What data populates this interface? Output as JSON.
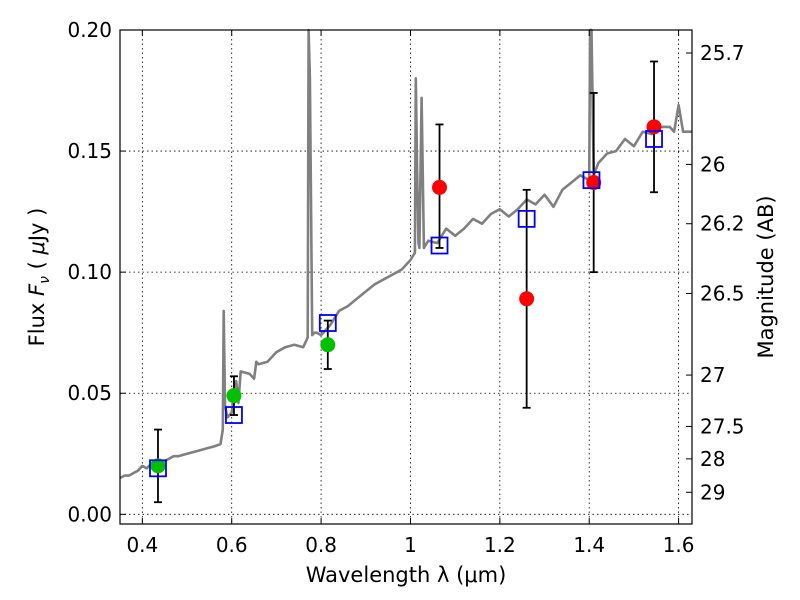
{
  "chart_data": {
    "type": "scatter",
    "xlabel": "Wavelength  λ (μm)",
    "ylabel": "Flux  F_ν  ( μJy )",
    "ylabel_right": "Magnitude (AB)",
    "xlim": [
      0.35,
      1.63
    ],
    "ylim": [
      -0.004,
      0.2
    ],
    "x_ticks": [
      0.4,
      0.6,
      0.8,
      1.0,
      1.2,
      1.4,
      1.6
    ],
    "x_tick_labels": [
      "0.4",
      "0.6",
      "0.8",
      "1",
      "1.2",
      "1.4",
      "1.6"
    ],
    "y_ticks": [
      0.0,
      0.05,
      0.1,
      0.15,
      0.2
    ],
    "y_tick_labels": [
      "0.00",
      "0.05",
      "0.10",
      "0.15",
      "0.20"
    ],
    "right_ticks": [
      {
        "flux": 0.1905,
        "label": "25.7"
      },
      {
        "flux": 0.1445,
        "label": "26"
      },
      {
        "flux": 0.12,
        "label": "26.2"
      },
      {
        "flux": 0.0912,
        "label": "26.5"
      },
      {
        "flux": 0.0575,
        "label": "27"
      },
      {
        "flux": 0.0363,
        "label": "27.5"
      },
      {
        "flux": 0.0229,
        "label": "28"
      },
      {
        "flux": 0.0091,
        "label": "29"
      }
    ],
    "grid": true,
    "colors": {
      "spectrum": "#808080",
      "green": "#00c000",
      "red": "#ff0000",
      "model_box": "#0000ff",
      "error_bar": "#000000"
    },
    "series": [
      {
        "name": "template spectrum",
        "style": "line",
        "x": [
          0.35,
          0.36,
          0.37,
          0.38,
          0.39,
          0.4,
          0.41,
          0.42,
          0.43,
          0.44,
          0.45,
          0.46,
          0.47,
          0.48,
          0.5,
          0.52,
          0.54,
          0.56,
          0.575,
          0.58,
          0.582,
          0.585,
          0.59,
          0.6,
          0.61,
          0.615,
          0.62,
          0.64,
          0.65,
          0.655,
          0.66,
          0.68,
          0.7,
          0.72,
          0.74,
          0.76,
          0.77,
          0.772,
          0.775,
          0.78,
          0.785,
          0.79,
          0.8,
          0.82,
          0.84,
          0.86,
          0.88,
          0.9,
          0.92,
          0.95,
          0.98,
          1.0,
          1.01,
          1.012,
          1.015,
          1.018,
          1.02,
          1.025,
          1.03,
          1.04,
          1.06,
          1.08,
          1.1,
          1.12,
          1.14,
          1.16,
          1.18,
          1.2,
          1.22,
          1.24,
          1.26,
          1.28,
          1.3,
          1.32,
          1.34,
          1.36,
          1.38,
          1.4,
          1.402,
          1.405,
          1.41,
          1.42,
          1.44,
          1.46,
          1.48,
          1.5,
          1.52,
          1.54,
          1.56,
          1.58,
          1.59,
          1.6,
          1.61,
          1.63
        ],
        "y": [
          0.015,
          0.016,
          0.016,
          0.017,
          0.018,
          0.02,
          0.019,
          0.021,
          0.022,
          0.021,
          0.022,
          0.023,
          0.024,
          0.024,
          0.025,
          0.026,
          0.027,
          0.028,
          0.029,
          0.035,
          0.084,
          0.045,
          0.04,
          0.042,
          0.055,
          0.046,
          0.059,
          0.058,
          0.056,
          0.063,
          0.062,
          0.063,
          0.067,
          0.069,
          0.07,
          0.069,
          0.073,
          0.21,
          0.18,
          0.074,
          0.075,
          0.075,
          0.074,
          0.078,
          0.084,
          0.086,
          0.089,
          0.092,
          0.095,
          0.098,
          0.101,
          0.105,
          0.108,
          0.18,
          0.14,
          0.112,
          0.11,
          0.172,
          0.11,
          0.113,
          0.112,
          0.118,
          0.115,
          0.118,
          0.122,
          0.12,
          0.124,
          0.126,
          0.123,
          0.126,
          0.13,
          0.128,
          0.132,
          0.127,
          0.134,
          0.137,
          0.14,
          0.138,
          0.21,
          0.2,
          0.14,
          0.145,
          0.149,
          0.15,
          0.155,
          0.152,
          0.158,
          0.157,
          0.16,
          0.16,
          0.158,
          0.169,
          0.158,
          0.158
        ]
      },
      {
        "name": "green detections",
        "style": "point",
        "color": "#00c000",
        "x": [
          0.435,
          0.605,
          0.815
        ],
        "y": [
          0.02,
          0.049,
          0.07
        ],
        "yerr_low": [
          0.005,
          0.041,
          0.06
        ],
        "yerr_high": [
          0.035,
          0.057,
          0.08
        ]
      },
      {
        "name": "red detections",
        "style": "point",
        "color": "#ff0000",
        "x": [
          1.065,
          1.26,
          1.41,
          1.545
        ],
        "y": [
          0.135,
          0.089,
          0.137,
          0.16
        ],
        "yerr_low": [
          0.11,
          0.044,
          0.1,
          0.133
        ],
        "yerr_high": [
          0.161,
          0.134,
          0.174,
          0.187
        ]
      },
      {
        "name": "model photometry",
        "style": "square",
        "color": "#0000ff",
        "x": [
          0.435,
          0.605,
          0.815,
          1.065,
          1.26,
          1.405,
          1.545
        ],
        "y": [
          0.019,
          0.041,
          0.079,
          0.111,
          0.122,
          0.138,
          0.155
        ]
      }
    ]
  }
}
